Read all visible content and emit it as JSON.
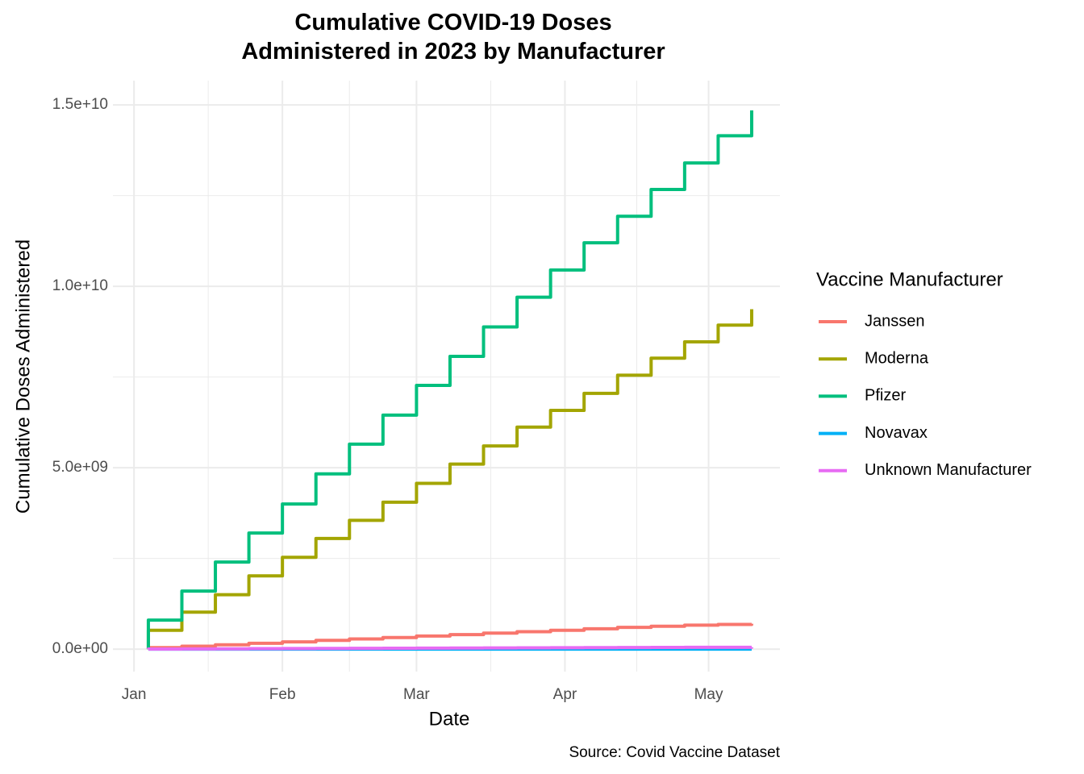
{
  "chart_data": {
    "type": "step",
    "title": "Cumulative COVID-19 Doses\nAdministered in 2023 by Manufacturer",
    "x_label": "Date",
    "y_label": "Cumulative Doses Administered",
    "caption": "Source: Covid Vaccine Dataset",
    "legend_title": "Vaccine Manufacturer",
    "legend_position": "right",
    "grid": true,
    "x": [
      3,
      3,
      10,
      17,
      24,
      31,
      38,
      45,
      52,
      59,
      66,
      73,
      80,
      87,
      94,
      101,
      108,
      115,
      122,
      129
    ],
    "xlim": [
      -4.4,
      134.9
    ],
    "xticks": [
      {
        "value": 0,
        "label": "Jan"
      },
      {
        "value": 31,
        "label": "Feb"
      },
      {
        "value": 59,
        "label": "Mar"
      },
      {
        "value": 90,
        "label": "Apr"
      },
      {
        "value": 120,
        "label": "May"
      }
    ],
    "ylim": [
      -620000000.0,
      15670000000.0
    ],
    "yticks": [
      {
        "value": 0,
        "label": "0.0e+00"
      },
      {
        "value": 5000000000.0,
        "label": "5.0e+09"
      },
      {
        "value": 10000000000.0,
        "label": "1.0e+10"
      },
      {
        "value": 15000000000.0,
        "label": "1.5e+10"
      }
    ],
    "series": [
      {
        "name": "Janssen",
        "color": "#F8766D",
        "values": [
          0,
          40000000.0,
          80000000.0,
          120000000.0,
          160000000.0,
          200000000.0,
          240000000.0,
          280000000.0,
          320000000.0,
          360000000.0,
          400000000.0,
          440000000.0,
          480000000.0,
          520000000.0,
          560000000.0,
          600000000.0,
          630000000.0,
          660000000.0,
          680000000.0,
          700000000.0
        ]
      },
      {
        "name": "Moderna",
        "color": "#A3A500",
        "values": [
          0,
          520000000.0,
          1020000000.0,
          1500000000.0,
          2020000000.0,
          2530000000.0,
          3050000000.0,
          3550000000.0,
          4050000000.0,
          4570000000.0,
          5100000000.0,
          5600000000.0,
          6120000000.0,
          6580000000.0,
          7050000000.0,
          7550000000.0,
          8020000000.0,
          8470000000.0,
          8930000000.0,
          9370000000.0
        ]
      },
      {
        "name": "Pfizer",
        "color": "#00BF7D",
        "values": [
          0,
          800000000.0,
          1600000000.0,
          2400000000.0,
          3200000000.0,
          4000000000.0,
          4830000000.0,
          5650000000.0,
          6450000000.0,
          7270000000.0,
          8070000000.0,
          8880000000.0,
          9700000000.0,
          10450000000.0,
          11200000000.0,
          11930000000.0,
          12670000000.0,
          13400000000.0,
          14150000000.0,
          14850000000.0
        ]
      },
      {
        "name": "Novavax",
        "color": "#00B0F6",
        "values": [
          0,
          0,
          0,
          0,
          0,
          0,
          0,
          0,
          0,
          0,
          0,
          0,
          0,
          0,
          0,
          0,
          0,
          0,
          0,
          0
        ]
      },
      {
        "name": "Unknown Manufacturer",
        "color": "#E76BF3",
        "values": [
          0,
          3000000.0,
          6000000.0,
          9000000.0,
          12000000.0,
          15000000.0,
          18000000.0,
          21000000.0,
          24000000.0,
          27000000.0,
          30000000.0,
          33000000.0,
          36000000.0,
          39000000.0,
          42000000.0,
          45000000.0,
          47000000.0,
          49000000.0,
          50000000.0,
          52000000.0
        ]
      }
    ]
  }
}
